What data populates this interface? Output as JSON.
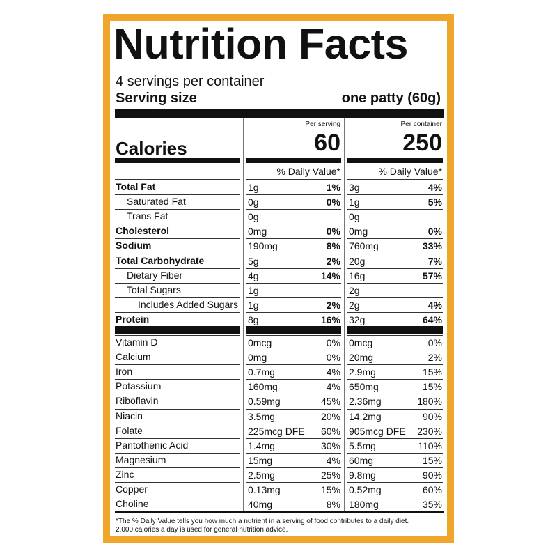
{
  "title": "Nutrition Facts",
  "servings": "4 servings per container",
  "serving_size": {
    "label": "Serving size",
    "value": "one patty (60g)"
  },
  "calories_label": "Calories",
  "columns": [
    {
      "header": "Per serving",
      "calories": "60",
      "dv_header": "% Daily Value*"
    },
    {
      "header": "Per container",
      "calories": "250",
      "dv_header": "% Daily Value*"
    }
  ],
  "nutrients": [
    {
      "name": "Total Fat",
      "bold": true,
      "indent": 0,
      "values": [
        [
          "1g",
          "1%"
        ],
        [
          "3g",
          "4%"
        ]
      ]
    },
    {
      "name": "Saturated Fat",
      "bold": false,
      "indent": 1,
      "values": [
        [
          "0g",
          "0%"
        ],
        [
          "1g",
          "5%"
        ]
      ]
    },
    {
      "name": "Trans Fat",
      "bold": false,
      "indent": 1,
      "values": [
        [
          "0g",
          null
        ],
        [
          "0g",
          null
        ]
      ]
    },
    {
      "name": "Cholesterol",
      "bold": true,
      "indent": 0,
      "values": [
        [
          "0mg",
          "0%"
        ],
        [
          "0mg",
          "0%"
        ]
      ]
    },
    {
      "name": "Sodium",
      "bold": true,
      "indent": 0,
      "values": [
        [
          "190mg",
          "8%"
        ],
        [
          "760mg",
          "33%"
        ]
      ]
    },
    {
      "name": "Total Carbohydrate",
      "bold": true,
      "indent": 0,
      "values": [
        [
          "5g",
          "2%"
        ],
        [
          "20g",
          "7%"
        ]
      ]
    },
    {
      "name": "Dietary Fiber",
      "bold": false,
      "indent": 1,
      "values": [
        [
          "4g",
          "14%"
        ],
        [
          "16g",
          "57%"
        ]
      ]
    },
    {
      "name": "Total Sugars",
      "bold": false,
      "indent": 1,
      "values": [
        [
          "1g",
          null
        ],
        [
          "2g",
          null
        ]
      ]
    },
    {
      "name": "Includes Added Sugars",
      "bold": false,
      "indent": 2,
      "values": [
        [
          "1g",
          "2%"
        ],
        [
          "2g",
          "4%"
        ]
      ]
    },
    {
      "name": "Protein",
      "bold": true,
      "indent": 0,
      "values": [
        [
          "8g",
          "16%"
        ],
        [
          "32g",
          "64%"
        ]
      ]
    }
  ],
  "micronutrients": [
    {
      "name": "Vitamin D",
      "values": [
        [
          "0mcg",
          "0%"
        ],
        [
          "0mcg",
          "0%"
        ]
      ]
    },
    {
      "name": "Calcium",
      "values": [
        [
          "0mg",
          "0%"
        ],
        [
          "20mg",
          "2%"
        ]
      ]
    },
    {
      "name": "Iron",
      "values": [
        [
          "0.7mg",
          "4%"
        ],
        [
          "2.9mg",
          "15%"
        ]
      ]
    },
    {
      "name": "Potassium",
      "values": [
        [
          "160mg",
          "4%"
        ],
        [
          "650mg",
          "15%"
        ]
      ]
    },
    {
      "name": "Riboflavin",
      "values": [
        [
          "0.59mg",
          "45%"
        ],
        [
          "2.36mg",
          "180%"
        ]
      ]
    },
    {
      "name": "Niacin",
      "values": [
        [
          "3.5mg",
          "20%"
        ],
        [
          "14.2mg",
          "90%"
        ]
      ]
    },
    {
      "name": "Folate",
      "values": [
        [
          "225mcg DFE",
          "60%"
        ],
        [
          "905mcg DFE",
          "230%"
        ]
      ]
    },
    {
      "name": "Pantothenic Acid",
      "values": [
        [
          "1.4mg",
          "30%"
        ],
        [
          "5.5mg",
          "110%"
        ]
      ]
    },
    {
      "name": "Magnesium",
      "values": [
        [
          "15mg",
          "4%"
        ],
        [
          "60mg",
          "15%"
        ]
      ]
    },
    {
      "name": "Zinc",
      "values": [
        [
          "2.5mg",
          "25%"
        ],
        [
          "9.8mg",
          "90%"
        ]
      ]
    },
    {
      "name": "Copper",
      "values": [
        [
          "0.13mg",
          "15%"
        ],
        [
          "0.52mg",
          "60%"
        ]
      ]
    },
    {
      "name": "Choline",
      "values": [
        [
          "40mg",
          "8%"
        ],
        [
          "180mg",
          "35%"
        ]
      ]
    }
  ],
  "footnote": [
    "*The % Daily Value tells you how much a nutrient in a serving of food contributes to a daily diet.",
    "2,000 calories a day is used for general nutrition advice."
  ]
}
